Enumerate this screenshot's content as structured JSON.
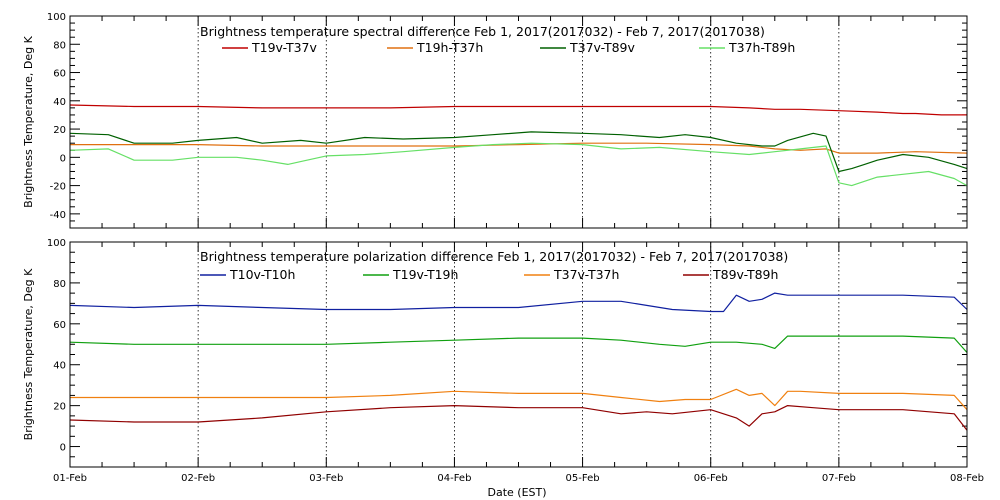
{
  "chart_data": [
    {
      "type": "line",
      "title": "Brightness temperature spectral difference    Feb  1, 2017(2017032) - Feb  7, 2017(2017038)",
      "xlabel": "",
      "ylabel": "Brightness Temperature, Deg K",
      "ylim": [
        -50,
        100
      ],
      "yticks": [
        "-40",
        "-20",
        "0",
        "20",
        "40",
        "60",
        "80",
        "100"
      ],
      "yticks_values": [
        -40,
        -20,
        0,
        20,
        40,
        60,
        80,
        100
      ],
      "xlim": [
        0,
        7
      ],
      "grid": true,
      "legend_position": "top",
      "series": [
        {
          "name": "T19v-T37v",
          "color": "#c00000",
          "x": [
            0,
            0.5,
            1,
            1.5,
            2,
            2.5,
            3,
            3.5,
            4,
            4.5,
            5,
            5.3,
            5.5,
            5.7,
            6.0,
            6.3,
            6.5,
            6.6,
            6.8,
            7.0
          ],
          "y": [
            37,
            36,
            36,
            35,
            35,
            35,
            36,
            36,
            36,
            36,
            36,
            35,
            34,
            34,
            33,
            32,
            31,
            31,
            30,
            30
          ]
        },
        {
          "name": "T19h-T37h",
          "color": "#e07010",
          "x": [
            0,
            0.5,
            1,
            1.5,
            2,
            2.5,
            3,
            3.5,
            4,
            4.5,
            5,
            5.3,
            5.5,
            5.7,
            5.9,
            6.0,
            6.3,
            6.6,
            7.0
          ],
          "y": [
            9,
            9,
            9,
            8,
            8,
            8,
            8,
            9,
            10,
            10,
            9,
            8,
            6,
            5,
            6,
            3,
            3,
            4,
            3
          ]
        },
        {
          "name": "T37v-T89v",
          "color": "#006000",
          "x": [
            0,
            0.3,
            0.5,
            0.8,
            1.0,
            1.3,
            1.5,
            1.8,
            2.0,
            2.3,
            2.6,
            3.0,
            3.3,
            3.6,
            4.0,
            4.3,
            4.6,
            4.8,
            5.0,
            5.2,
            5.4,
            5.5,
            5.6,
            5.8,
            5.9,
            6.0,
            6.1,
            6.2,
            6.3,
            6.5,
            6.7,
            6.9,
            7.0
          ],
          "y": [
            17,
            16,
            10,
            10,
            12,
            14,
            10,
            12,
            10,
            14,
            13,
            14,
            16,
            18,
            17,
            16,
            14,
            16,
            14,
            10,
            8,
            8,
            12,
            17,
            15,
            -10,
            -8,
            -5,
            -2,
            2,
            0,
            -5,
            -8
          ]
        },
        {
          "name": "T37h-T89h",
          "color": "#66e066",
          "x": [
            0,
            0.3,
            0.5,
            0.8,
            1.0,
            1.3,
            1.5,
            1.7,
            1.8,
            2.0,
            2.3,
            2.6,
            3.0,
            3.3,
            3.6,
            4.0,
            4.3,
            4.6,
            5.0,
            5.3,
            5.5,
            5.7,
            5.9,
            6.0,
            6.1,
            6.3,
            6.5,
            6.7,
            6.9,
            7.0
          ],
          "y": [
            5,
            6,
            -2,
            -2,
            0,
            0,
            -2,
            -5,
            -3,
            1,
            2,
            4,
            7,
            9,
            10,
            9,
            6,
            7,
            4,
            2,
            4,
            6,
            8,
            -18,
            -20,
            -14,
            -12,
            -10,
            -15,
            -20
          ]
        }
      ]
    },
    {
      "type": "line",
      "title": "Brightness temperature polarization difference    Feb  1, 2017(2017032) - Feb  7, 2017(2017038)",
      "xlabel": "Date (EST)",
      "ylabel": "Brightness Temperature, Deg K",
      "ylim": [
        -10,
        100
      ],
      "yticks": [
        "0",
        "20",
        "40",
        "60",
        "80",
        "100"
      ],
      "yticks_values": [
        0,
        20,
        40,
        60,
        80,
        100
      ],
      "xlim": [
        0,
        7
      ],
      "xticks": [
        "01-Feb",
        "02-Feb",
        "03-Feb",
        "04-Feb",
        "05-Feb",
        "06-Feb",
        "07-Feb",
        "08-Feb"
      ],
      "xticks_values": [
        0,
        1,
        2,
        3,
        4,
        5,
        6,
        7
      ],
      "grid": true,
      "legend_position": "top",
      "series": [
        {
          "name": "T10v-T10h",
          "color": "#1020a0",
          "x": [
            0,
            0.5,
            1.0,
            1.5,
            2.0,
            2.5,
            3.0,
            3.5,
            4.0,
            4.3,
            4.5,
            4.7,
            5.0,
            5.1,
            5.2,
            5.3,
            5.4,
            5.5,
            5.6,
            5.8,
            6.0,
            6.5,
            6.9,
            7.0
          ],
          "y": [
            69,
            68,
            69,
            68,
            67,
            67,
            68,
            68,
            71,
            71,
            69,
            67,
            66,
            66,
            74,
            71,
            72,
            75,
            74,
            74,
            74,
            74,
            73,
            67
          ]
        },
        {
          "name": "T19v-T19h",
          "color": "#10a010",
          "x": [
            0,
            0.5,
            1.0,
            1.5,
            2.0,
            2.5,
            3.0,
            3.5,
            4.0,
            4.3,
            4.6,
            4.8,
            5.0,
            5.2,
            5.4,
            5.5,
            5.6,
            5.8,
            6.0,
            6.5,
            6.9,
            7.0
          ],
          "y": [
            51,
            50,
            50,
            50,
            50,
            51,
            52,
            53,
            53,
            52,
            50,
            49,
            51,
            51,
            50,
            48,
            54,
            54,
            54,
            54,
            53,
            46
          ]
        },
        {
          "name": "T37v-T37h",
          "color": "#f08010",
          "x": [
            0,
            0.5,
            1.0,
            1.5,
            2.0,
            2.5,
            3.0,
            3.5,
            4.0,
            4.3,
            4.6,
            4.8,
            5.0,
            5.2,
            5.3,
            5.4,
            5.5,
            5.6,
            5.7,
            6.0,
            6.5,
            6.9,
            7.0
          ],
          "y": [
            24,
            24,
            24,
            24,
            24,
            25,
            27,
            26,
            26,
            24,
            22,
            23,
            23,
            28,
            25,
            26,
            20,
            27,
            27,
            26,
            26,
            25,
            18
          ]
        },
        {
          "name": "T89v-T89h",
          "color": "#900000",
          "x": [
            0,
            0.5,
            1.0,
            1.5,
            2.0,
            2.5,
            3.0,
            3.5,
            4.0,
            4.3,
            4.5,
            4.7,
            5.0,
            5.2,
            5.3,
            5.4,
            5.5,
            5.6,
            5.8,
            6.0,
            6.5,
            6.9,
            7.0
          ],
          "y": [
            13,
            12,
            12,
            14,
            17,
            19,
            20,
            19,
            19,
            16,
            17,
            16,
            18,
            14,
            10,
            16,
            17,
            20,
            19,
            18,
            18,
            16,
            8
          ]
        }
      ]
    }
  ]
}
